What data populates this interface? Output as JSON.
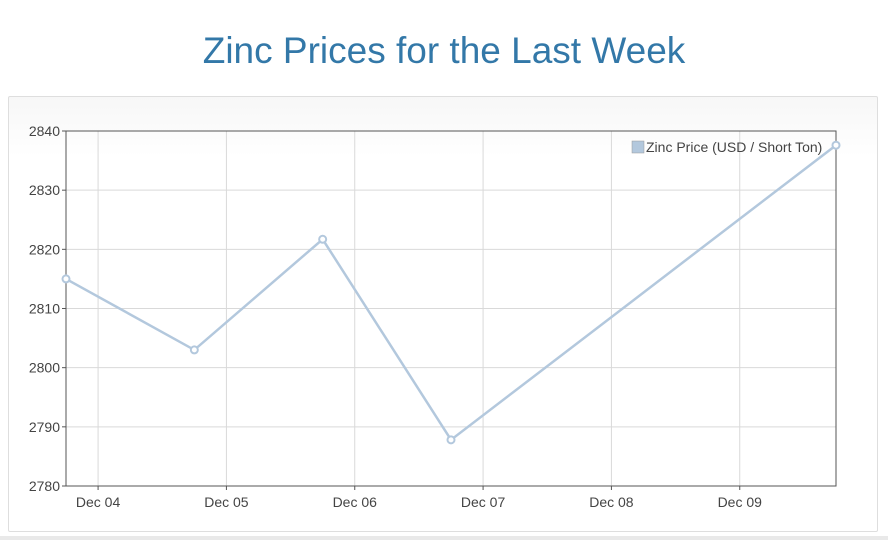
{
  "page": {
    "title": "Zinc Prices for the Last Week"
  },
  "colors": {
    "title": "#3378a8",
    "series": "#b3c8dd",
    "grid": "#d9d9d9",
    "axis": "#555555"
  },
  "chart_data": {
    "type": "line",
    "title": "",
    "xlabel": "",
    "ylabel": "",
    "xlim": [
      "Dec 03, 18:00",
      "Dec 09, 18:00"
    ],
    "ylim": [
      2780,
      2840
    ],
    "x_ticks": [
      "Dec 04",
      "Dec 05",
      "Dec 06",
      "Dec 07",
      "Dec 08",
      "Dec 09"
    ],
    "y_ticks": [
      2780,
      2790,
      2800,
      2810,
      2820,
      2830,
      2840
    ],
    "grid": true,
    "legend_position": "top-right",
    "series": [
      {
        "name": "Zinc Price (USD / Short Ton)",
        "x": [
          "Dec 03, 18:00",
          "Dec 04, 18:00",
          "Dec 05, 18:00",
          "Dec 06, 18:00",
          "Dec 09, 18:00"
        ],
        "values": [
          2815,
          2803,
          2821.7,
          2787.8,
          2837.6
        ]
      }
    ]
  }
}
